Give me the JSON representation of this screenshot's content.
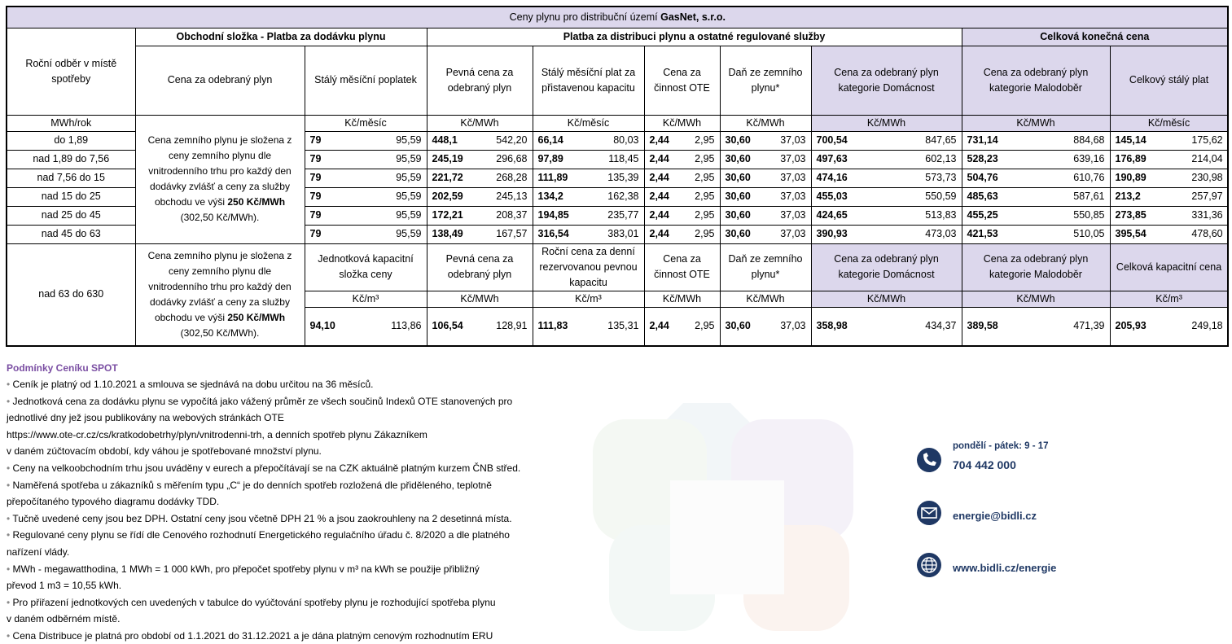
{
  "table": {
    "title_prefix": "Ceny plynu pro distribuční území ",
    "title_company": "GasNet, s.r.o.",
    "groups": [
      "Obchodní složka - Platba za dodávku plynu",
      "Platba za distribuci plynu a ostatné regulované služby",
      "Celková konečná cena"
    ],
    "first_header": "Roční odběr v místě spotřeby",
    "first_unit": "MWh/rok",
    "headers": [
      "Cena za odebraný plyn",
      "Stálý měsíční poplatek",
      "Pevná cena za odebraný plyn",
      "Stálý měsíční plat za přistavenou kapacitu",
      "Cena za činnost OTE",
      "Daň ze zemního plynu*",
      "Cena za odebraný plyn kategorie Domácnost",
      "Cena za odebraný plyn kategorie Malodoběr",
      "Celkový stálý plat"
    ],
    "units": [
      "Kč/měsíc",
      "Kč/MWh",
      "Kč/měsíc",
      "Kč/MWh",
      "Kč/MWh",
      "Kč/MWh",
      "Kč/MWh",
      "Kč/měsíc"
    ],
    "description": {
      "text": "Cena zemního plynu je složena z ceny zemního plynu dle vnitrodenního trhu pro každý den dodávky zvlášť a ceny za služby obchodu ve výši ",
      "bold": "250 Kč/MWh",
      "tail": " (302,50 Kč/MWh)."
    },
    "rows": [
      {
        "range": "do 1,89",
        "values": [
          [
            "79",
            "95,59"
          ],
          [
            "448,1",
            "542,20"
          ],
          [
            "66,14",
            "80,03"
          ],
          [
            "2,44",
            "2,95"
          ],
          [
            "30,60",
            "37,03"
          ],
          [
            "700,54",
            "847,65"
          ],
          [
            "731,14",
            "884,68"
          ],
          [
            "145,14",
            "175,62"
          ]
        ]
      },
      {
        "range": "nad 1,89 do 7,56",
        "values": [
          [
            "79",
            "95,59"
          ],
          [
            "245,19",
            "296,68"
          ],
          [
            "97,89",
            "118,45"
          ],
          [
            "2,44",
            "2,95"
          ],
          [
            "30,60",
            "37,03"
          ],
          [
            "497,63",
            "602,13"
          ],
          [
            "528,23",
            "639,16"
          ],
          [
            "176,89",
            "214,04"
          ]
        ]
      },
      {
        "range": "nad 7,56 do 15",
        "values": [
          [
            "79",
            "95,59"
          ],
          [
            "221,72",
            "268,28"
          ],
          [
            "111,89",
            "135,39"
          ],
          [
            "2,44",
            "2,95"
          ],
          [
            "30,60",
            "37,03"
          ],
          [
            "474,16",
            "573,73"
          ],
          [
            "504,76",
            "610,76"
          ],
          [
            "190,89",
            "230,98"
          ]
        ]
      },
      {
        "range": "nad 15 do 25",
        "values": [
          [
            "79",
            "95,59"
          ],
          [
            "202,59",
            "245,13"
          ],
          [
            "134,2",
            "162,38"
          ],
          [
            "2,44",
            "2,95"
          ],
          [
            "30,60",
            "37,03"
          ],
          [
            "455,03",
            "550,59"
          ],
          [
            "485,63",
            "587,61"
          ],
          [
            "213,2",
            "257,97"
          ]
        ]
      },
      {
        "range": "nad 25 do 45",
        "values": [
          [
            "79",
            "95,59"
          ],
          [
            "172,21",
            "208,37"
          ],
          [
            "194,85",
            "235,77"
          ],
          [
            "2,44",
            "2,95"
          ],
          [
            "30,60",
            "37,03"
          ],
          [
            "424,65",
            "513,83"
          ],
          [
            "455,25",
            "550,85"
          ],
          [
            "273,85",
            "331,36"
          ]
        ]
      },
      {
        "range": "nad 45 do 63",
        "values": [
          [
            "79",
            "95,59"
          ],
          [
            "138,49",
            "167,57"
          ],
          [
            "316,54",
            "383,01"
          ],
          [
            "2,44",
            "2,95"
          ],
          [
            "30,60",
            "37,03"
          ],
          [
            "390,93",
            "473,03"
          ],
          [
            "421,53",
            "510,05"
          ],
          [
            "395,54",
            "478,60"
          ]
        ]
      }
    ],
    "bottom": {
      "range": "nad 63 do 630",
      "description": {
        "text": "Cena zemního plynu je složena z ceny zemního plynu dle vnitrodenního trhu pro každý den dodávky zvlášť a ceny za služby obchodu ve výši ",
        "bold": "250 Kč/MWh",
        "tail": " (302,50 Kč/MWh)."
      },
      "headers": [
        "Jednotková kapacitní složka ceny",
        "Pevná cena za odebraný plyn",
        "Roční cena za denní rezervovanou pevnou kapacitu",
        "Cena za činnost OTE",
        "Daň ze zemního plynu*",
        "Cena za odebraný plyn kategorie Domácnost",
        "Cena za odebraný plyn kategorie Malodoběr",
        "Celková kapacitní cena"
      ],
      "units": [
        "Kč/m³",
        "Kč/MWh",
        "Kč/m³",
        "Kč/MWh",
        "Kč/MWh",
        "Kč/MWh",
        "Kč/MWh",
        "Kč/m³"
      ],
      "values": [
        [
          "94,10",
          "113,86"
        ],
        [
          "106,54",
          "128,91"
        ],
        [
          "111,83",
          "135,31"
        ],
        [
          "2,44",
          "2,95"
        ],
        [
          "30,60",
          "37,03"
        ],
        [
          "358,98",
          "434,37"
        ],
        [
          "389,58",
          "471,39"
        ],
        [
          "205,93",
          "249,18"
        ]
      ]
    }
  },
  "notes": {
    "title": "Podmínky Ceníku SPOT",
    "items": [
      [
        "Ceník je platný od 1.10.2021 a smlouva se sjednává na dobu určitou na 36 měsíců."
      ],
      [
        "Jednotková cena za dodávku plynu se vypočítá jako vážený průměr ze všech součinů Indexů OTE stanovených pro",
        "jednotlivé dny jež jsou publikovány na webových stránkách OTE",
        "https://www.ote-cr.cz/cs/kratkodobetrhy/plyn/vnitrodenni-trh, a denních spotřeb plynu Zákazníkem",
        "v daném zúčtovacím období, kdy váhou je spotřebované množství plynu."
      ],
      [
        "Ceny na velkoobchodním trhu jsou uváděny v eurech a přepočítávají se na CZK aktuálně platným kurzem ČNB střed."
      ],
      [
        "Naměřená spotřeba u zákazníků s měřením typu „C“ je do denních spotřeb rozložená dle přiděleného, teplotně",
        "přepočítaného typového diagramu dodávky TDD."
      ],
      [
        "Tučně uvedené ceny jsou bez DPH. Ostatní ceny jsou včetně DPH 21 % a jsou zaokrouhleny na 2 desetinná místa."
      ],
      [
        "Regulované ceny plynu se řídí dle Cenového rozhodnutí Energetického regulačního úřadu č. 8/2020 a dle platného",
        "nařízení vlády."
      ],
      [
        "MWh - megawatthodina, 1 MWh = 1 000 kWh, pro přepočet spotřeby plynu v m³ na kWh se použije přibližný",
        "převod 1 m3 = 10,55 kWh."
      ],
      [
        "Pro přiřazení jednotkových cen uvedených v tabulce do vyúčtování spotřeby plynu je rozhodující spotřeba plynu",
        "v daném odběrném místě."
      ],
      [
        "Cena Distribuce je platná pro období od 1.1.2021 do 31.12.2021 a je dána platným cenovým rozhodnutím ERU"
      ]
    ]
  },
  "contact": {
    "hours": "pondělí - pátek: 9 - 17",
    "phone": "704 442 000",
    "email": "energie@bidli.cz",
    "web": "www.bidli.cz/energie"
  }
}
